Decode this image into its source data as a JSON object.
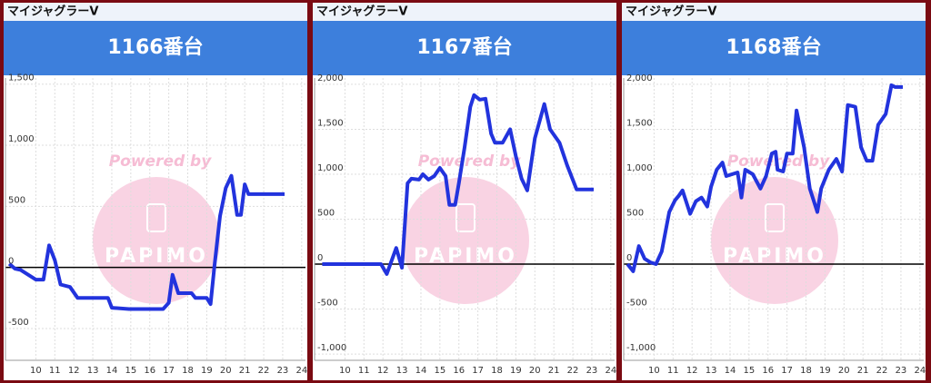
{
  "chart_data": [
    {
      "type": "line",
      "header": "マイジャグラーV",
      "title": "1166番台",
      "watermark": "Powered by",
      "logo": "PAPIMO",
      "color": "#2233dd",
      "grid": true,
      "xlim": [
        8.4,
        24.2
      ],
      "xticks": [
        10,
        11,
        12,
        13,
        14,
        15,
        16,
        17,
        18,
        19,
        20,
        21,
        22,
        23,
        24
      ],
      "ylim": [
        -760,
        1550
      ],
      "yticks": [
        -500,
        0,
        500,
        {
          "value": 1000,
          "label": "1,000"
        },
        {
          "value": 1500,
          "label": "1,500"
        }
      ],
      "x": [
        8.6,
        8.9,
        9.2,
        10,
        10.4,
        10.7,
        11,
        11.3,
        11.8,
        12.2,
        12.8,
        13.8,
        14,
        14.9,
        16.7,
        17,
        17.2,
        17.5,
        18.2,
        18.4,
        19,
        19.2,
        19.4,
        19.7,
        20,
        20.3,
        20.6,
        20.8,
        21,
        21.2,
        23.1
      ],
      "values": [
        30,
        -10,
        -20,
        -100,
        -100,
        180,
        60,
        -140,
        -160,
        -250,
        -250,
        -250,
        -330,
        -340,
        -340,
        -290,
        -60,
        -210,
        -210,
        -250,
        -250,
        -300,
        0,
        420,
        650,
        750,
        430,
        430,
        680,
        600,
        600
      ]
    },
    {
      "type": "line",
      "header": "マイジャグラーV",
      "title": "1167番台",
      "watermark": "Powered by",
      "logo": "PAPIMO",
      "color": "#2233dd",
      "grid": true,
      "xlim": [
        8.4,
        24.2
      ],
      "xticks": [
        10,
        11,
        12,
        13,
        14,
        15,
        16,
        17,
        18,
        19,
        20,
        21,
        22,
        23,
        24
      ],
      "ylim": [
        -1070,
        2070
      ],
      "yticks": [
        {
          "value": -1000,
          "label": "-1,000"
        },
        -500,
        0,
        500,
        {
          "value": 1000,
          "label": "1,000"
        },
        {
          "value": 1500,
          "label": "1,500"
        },
        {
          "value": 2000,
          "label": "2,000"
        }
      ],
      "x": [
        8.8,
        11.9,
        12.2,
        12.7,
        13,
        13.3,
        13.5,
        13.9,
        14.1,
        14.4,
        14.7,
        15,
        15.3,
        15.5,
        15.8,
        16,
        16.3,
        16.6,
        16.8,
        17.1,
        17.4,
        17.7,
        17.9,
        18.3,
        18.7,
        19,
        19.3,
        19.6,
        20,
        20.5,
        20.8,
        21.3,
        21.7,
        22.2,
        23.1
      ],
      "values": [
        0,
        0,
        -110,
        180,
        -40,
        900,
        950,
        940,
        1000,
        940,
        980,
        1070,
        980,
        660,
        660,
        900,
        1300,
        1750,
        1880,
        1830,
        1840,
        1450,
        1350,
        1350,
        1500,
        1200,
        950,
        820,
        1400,
        1780,
        1500,
        1350,
        1100,
        830,
        830
      ]
    },
    {
      "type": "line",
      "header": "マイジャグラーV",
      "title": "1168番台",
      "watermark": "Powered by",
      "logo": "PAPIMO",
      "color": "#2233dd",
      "grid": true,
      "xlim": [
        8.4,
        24.2
      ],
      "xticks": [
        10,
        11,
        12,
        13,
        14,
        15,
        16,
        17,
        18,
        19,
        20,
        21,
        22,
        23,
        24
      ],
      "ylim": [
        -1070,
        2070
      ],
      "yticks": [
        {
          "value": -1000,
          "label": "-1,000"
        },
        -500,
        0,
        500,
        {
          "value": 1000,
          "label": "1,000"
        },
        {
          "value": 1500,
          "label": "1,500"
        },
        {
          "value": 2000,
          "label": "2,000"
        }
      ],
      "x": [
        8.6,
        8.9,
        9.2,
        9.5,
        9.8,
        10.1,
        10.4,
        10.8,
        11.1,
        11.3,
        11.5,
        11.9,
        12.2,
        12.5,
        12.8,
        13,
        13.3,
        13.6,
        13.8,
        14.1,
        14.4,
        14.6,
        14.8,
        15.2,
        15.6,
        15.9,
        16.2,
        16.4,
        16.5,
        16.8,
        17,
        17.3,
        17.5,
        17.9,
        18.2,
        18.6,
        18.8,
        19.2,
        19.6,
        19.9,
        20.2,
        20.6,
        20.9,
        21.2,
        21.5,
        21.8,
        22.2,
        22.5,
        22.7,
        23.1
      ],
      "values": [
        0,
        -80,
        200,
        60,
        20,
        0,
        140,
        580,
        710,
        760,
        820,
        560,
        700,
        740,
        640,
        860,
        1050,
        1130,
        980,
        1000,
        1020,
        740,
        1050,
        1000,
        840,
        980,
        1230,
        1250,
        1050,
        1030,
        1230,
        1230,
        1710,
        1300,
        840,
        580,
        840,
        1050,
        1170,
        1030,
        1770,
        1750,
        1300,
        1150,
        1150,
        1550,
        1670,
        1990,
        1970,
        1970
      ]
    }
  ]
}
